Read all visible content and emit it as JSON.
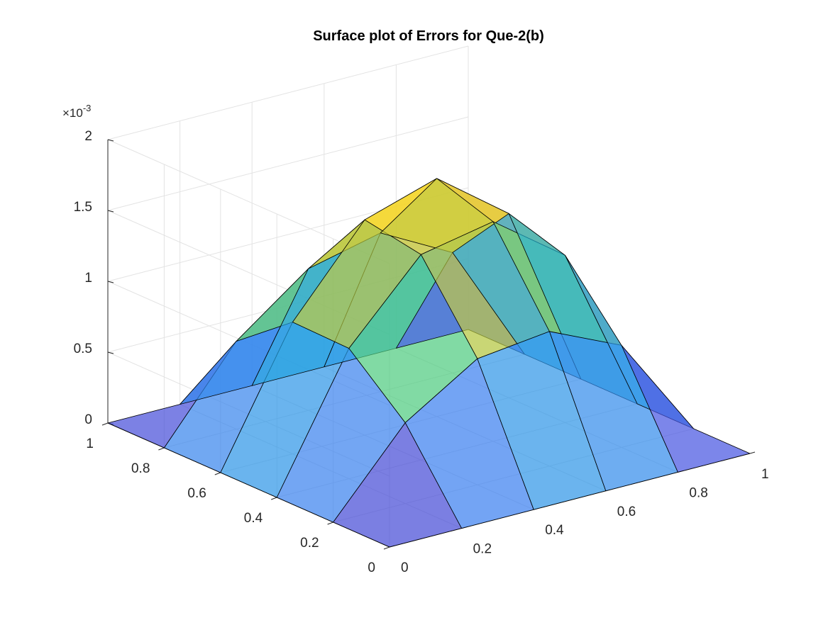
{
  "chart_data": {
    "type": "surface",
    "title": "Surface plot of Errors for Que-2(b)",
    "xlabel": "",
    "ylabel": "",
    "zlabel": "",
    "z_exponent_label": "×10",
    "z_exponent_power": "-3",
    "x_ticks": [
      "0",
      "0.2",
      "0.4",
      "0.6",
      "0.8",
      "1"
    ],
    "y_ticks": [
      "0",
      "0.2",
      "0.4",
      "0.6",
      "0.8",
      "1"
    ],
    "z_ticks": [
      "0",
      "0.5",
      "1",
      "1.5",
      "2"
    ],
    "xlim": [
      0,
      1
    ],
    "ylim": [
      0,
      1
    ],
    "zlim": [
      0,
      0.002
    ],
    "grid": true,
    "colormap": "parula",
    "face_alpha": 0.7,
    "x": [
      0,
      0.2,
      0.4,
      0.6,
      0.8,
      1
    ],
    "y": [
      0,
      0.2,
      0.4,
      0.6,
      0.8,
      1
    ],
    "z_note_units": "z values in units of 1e-3",
    "z": [
      [
        0,
        0,
        0,
        0,
        0,
        0
      ],
      [
        0,
        0.57,
        0.89,
        0.95,
        0.72,
        0
      ],
      [
        0,
        0.92,
        1.45,
        1.55,
        1.18,
        0
      ],
      [
        0,
        0.93,
        1.52,
        1.68,
        1.3,
        0
      ],
      [
        0,
        0.62,
        1.0,
        1.12,
        0.85,
        0
      ],
      [
        0,
        0,
        0,
        0,
        0,
        0
      ]
    ],
    "colors": {
      "axes_line": "#262626",
      "grid": "#e3e3e3",
      "mesh_edge": "#000000"
    }
  }
}
